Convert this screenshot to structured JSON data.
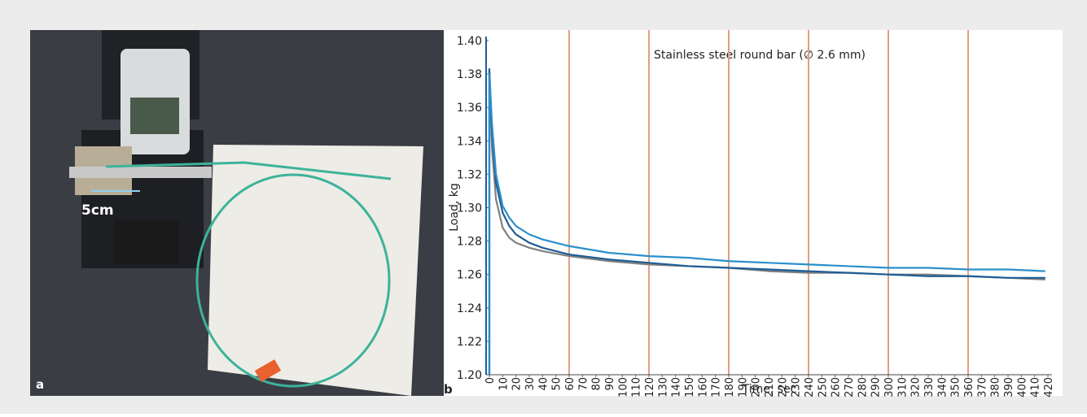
{
  "photo": {
    "panel_label": "a",
    "scale_label": "5cm"
  },
  "chart_data": {
    "type": "line",
    "panel_label": "b",
    "title": "Stainless steel round bar (∅ 2.6 mm)",
    "y_label": "Load, kg",
    "x_label": "Time, sec",
    "x": [
      0,
      0,
      2,
      5,
      10,
      15,
      20,
      30,
      40,
      60,
      90,
      120,
      150,
      180,
      210,
      240,
      270,
      300,
      330,
      360,
      390,
      418
    ],
    "series": [
      {
        "color": "#808080",
        "values": [
          1.2,
          1.38,
          1.335,
          1.305,
          1.288,
          1.282,
          1.279,
          1.276,
          1.274,
          1.271,
          1.268,
          1.266,
          1.265,
          1.264,
          1.262,
          1.261,
          1.261,
          1.26,
          1.26,
          1.259,
          1.258,
          1.257
        ]
      },
      {
        "color": "#1e5d96",
        "values": [
          1.2,
          1.383,
          1.345,
          1.315,
          1.297,
          1.289,
          1.284,
          1.279,
          1.276,
          1.272,
          1.269,
          1.267,
          1.265,
          1.264,
          1.263,
          1.262,
          1.261,
          1.26,
          1.259,
          1.259,
          1.258,
          1.258
        ]
      },
      {
        "color": "#2a8fcc",
        "values": [
          1.2,
          1.38,
          1.35,
          1.32,
          1.301,
          1.294,
          1.289,
          1.284,
          1.281,
          1.277,
          1.273,
          1.271,
          1.27,
          1.268,
          1.267,
          1.266,
          1.265,
          1.264,
          1.264,
          1.263,
          1.263,
          1.262
        ]
      }
    ],
    "xlim": [
      0,
      420
    ],
    "xticks": [
      0,
      10,
      20,
      30,
      40,
      50,
      60,
      70,
      80,
      90,
      100,
      110,
      120,
      130,
      140,
      150,
      160,
      170,
      180,
      190,
      200,
      210,
      220,
      230,
      240,
      250,
      260,
      270,
      280,
      290,
      300,
      310,
      320,
      330,
      340,
      350,
      360,
      370,
      380,
      390,
      400,
      410,
      420
    ],
    "ylim": [
      1.2,
      1.4
    ],
    "yticks": [
      {
        "value": 1.2,
        "label": "1.20"
      },
      {
        "value": 1.22,
        "label": "1.22"
      },
      {
        "value": 1.24,
        "label": "1.24"
      },
      {
        "value": 1.26,
        "label": "1.26"
      },
      {
        "value": 1.28,
        "label": "1.28"
      },
      {
        "value": 1.3,
        "label": "1.30"
      },
      {
        "value": 1.32,
        "label": "1.32"
      },
      {
        "value": 1.34,
        "label": "1.34"
      },
      {
        "value": 1.36,
        "label": "1.36"
      },
      {
        "value": 1.38,
        "label": "1.38"
      },
      {
        "value": 1.4,
        "label": "1.40"
      }
    ],
    "reference_lines": [
      60,
      120,
      180,
      240,
      300,
      360
    ],
    "reference_color": "#e0a080"
  }
}
